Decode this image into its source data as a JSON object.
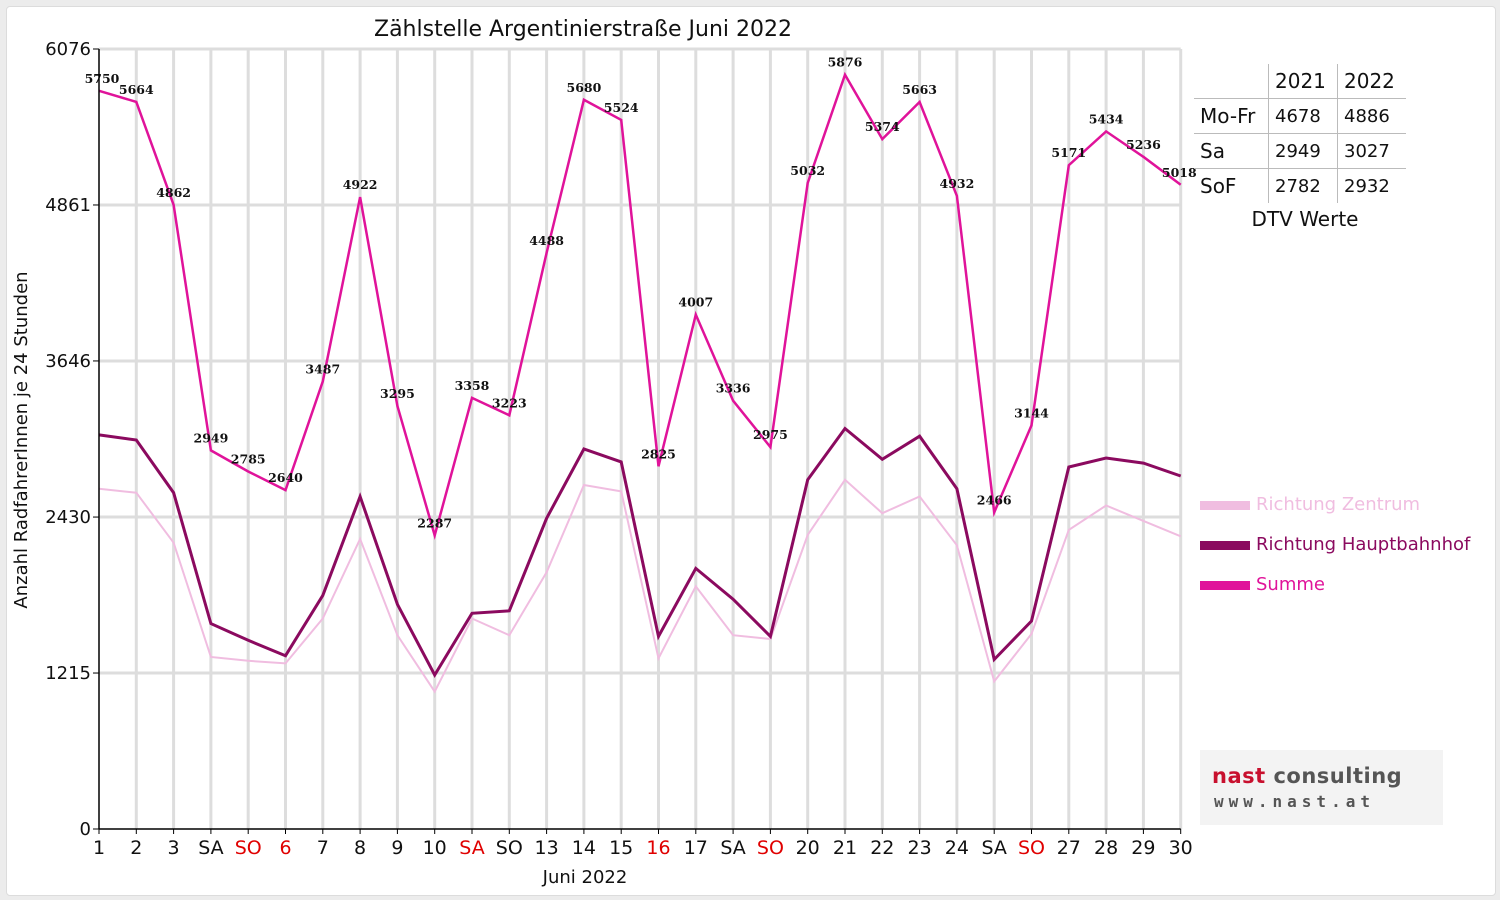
{
  "chart_data": {
    "type": "line",
    "title": "Zählstelle Argentinierstraße Juni 2022",
    "xlabel": "Juni 2022",
    "ylabel": "Anzahl RadfahrerInnen je 24 Stunden",
    "ylim": [
      0,
      6076
    ],
    "yticks": [
      0,
      1215,
      2430,
      3646,
      4861,
      6076
    ],
    "grid": true,
    "legend_position": "right",
    "categories": [
      "1",
      "2",
      "3",
      "SA",
      "SO",
      "6",
      "7",
      "8",
      "9",
      "10",
      "SA",
      "SO",
      "13",
      "14",
      "15",
      "16",
      "17",
      "SA",
      "SO",
      "20",
      "21",
      "22",
      "23",
      "24",
      "SA",
      "SO",
      "27",
      "28",
      "29",
      "30"
    ],
    "red_categories": [
      4,
      5,
      10,
      15,
      18,
      25
    ],
    "series": [
      {
        "name": "Richtung Zentrum",
        "color": "#f0bde0",
        "values": [
          2650,
          2620,
          2230,
          1340,
          1310,
          1290,
          1640,
          2260,
          1510,
          1070,
          1640,
          1510,
          2000,
          2680,
          2630,
          1330,
          1890,
          1510,
          1480,
          2290,
          2720,
          2460,
          2590,
          2210,
          1150,
          1520,
          2330,
          2520,
          2400,
          2280
        ]
      },
      {
        "name": "Richtung Hauptbahnhof",
        "color": "#8b0a5f",
        "values": [
          3070,
          3030,
          2620,
          1600,
          1470,
          1350,
          1820,
          2590,
          1750,
          1200,
          1680,
          1700,
          2420,
          2960,
          2860,
          1500,
          2030,
          1790,
          1500,
          2720,
          3120,
          2880,
          3060,
          2650,
          1320,
          1620,
          2820,
          2890,
          2850,
          2750
        ]
      },
      {
        "name": "Summe",
        "color": "#e0139a",
        "values": [
          5750,
          5664,
          4862,
          2949,
          2785,
          2640,
          3487,
          4922,
          3295,
          2287,
          3358,
          3223,
          4488,
          5680,
          5524,
          2825,
          4007,
          3336,
          2975,
          5032,
          5876,
          5374,
          5663,
          4932,
          2466,
          3144,
          5171,
          5434,
          5236,
          5018
        ],
        "labels": [
          "5750",
          "5664",
          "4862",
          "2949",
          "2785",
          "2640",
          "3487",
          "4922",
          "3295",
          "2287",
          "3358",
          "3223",
          "4488",
          "5680",
          "5524",
          "2825",
          "4007",
          "3336",
          "2975",
          "5032",
          "5876",
          "5374",
          "5663",
          "4932",
          "2466",
          "3144",
          "5171",
          "5434",
          "5236",
          "5018"
        ]
      }
    ]
  },
  "dtv_table": {
    "columns": [
      "2021",
      "2022"
    ],
    "rows": [
      {
        "label": "Mo-Fr",
        "v2021": "4678",
        "v2022": "4886"
      },
      {
        "label": "Sa",
        "v2021": "2949",
        "v2022": "3027"
      },
      {
        "label": "SoF",
        "v2021": "2782",
        "v2022": "2932"
      }
    ],
    "caption": "DTV Werte"
  },
  "logo": {
    "part1": "nast",
    "part2": "consulting",
    "line2": "www.nast.at"
  },
  "colors": {
    "weekday_label": "#111111",
    "holiday_label": "#e00000",
    "grid": "#dddddd",
    "axis": "#000000"
  }
}
